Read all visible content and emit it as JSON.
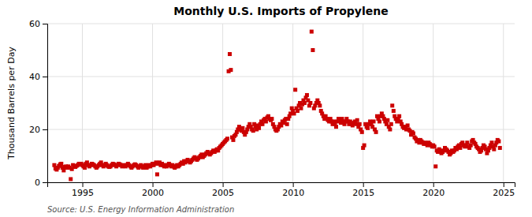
{
  "chart_data": {
    "type": "scatter",
    "title": "Monthly U.S. Imports of Propylene",
    "ylabel": "Thousand Barrels per Day",
    "annotation": "Source: U.S. Energy Information Administration",
    "color": "#cc0000",
    "marker": "square",
    "grid": true,
    "xlim": [
      1992.5,
      2025.8
    ],
    "xticks": [
      1995,
      2000,
      2005,
      2010,
      2015,
      2020,
      2025
    ],
    "ylim": [
      0,
      60
    ],
    "yticks": [
      0,
      20,
      40,
      60
    ],
    "x": [
      1993.0,
      1993.08,
      1993.17,
      1993.25,
      1993.33,
      1993.42,
      1993.5,
      1993.58,
      1993.67,
      1993.75,
      1993.83,
      1993.92,
      1994.0,
      1994.08,
      1994.17,
      1994.25,
      1994.33,
      1994.42,
      1994.5,
      1994.58,
      1994.67,
      1994.75,
      1994.83,
      1994.92,
      1995.0,
      1995.08,
      1995.17,
      1995.25,
      1995.33,
      1995.42,
      1995.5,
      1995.58,
      1995.67,
      1995.75,
      1995.83,
      1995.92,
      1996.0,
      1996.08,
      1996.17,
      1996.25,
      1996.33,
      1996.42,
      1996.5,
      1996.58,
      1996.67,
      1996.75,
      1996.83,
      1996.92,
      1997.0,
      1997.08,
      1997.17,
      1997.25,
      1997.33,
      1997.42,
      1997.5,
      1997.58,
      1997.67,
      1997.75,
      1997.83,
      1997.92,
      1998.0,
      1998.08,
      1998.17,
      1998.25,
      1998.33,
      1998.42,
      1998.5,
      1998.58,
      1998.67,
      1998.75,
      1998.83,
      1998.92,
      1999.0,
      1999.08,
      1999.17,
      1999.25,
      1999.33,
      1999.42,
      1999.5,
      1999.58,
      1999.67,
      1999.75,
      1999.83,
      1999.92,
      2000.0,
      2000.08,
      2000.17,
      2000.25,
      2000.33,
      2000.42,
      2000.5,
      2000.58,
      2000.67,
      2000.75,
      2000.83,
      2000.92,
      2001.0,
      2001.08,
      2001.17,
      2001.25,
      2001.33,
      2001.42,
      2001.5,
      2001.58,
      2001.67,
      2001.75,
      2001.83,
      2001.92,
      2002.0,
      2002.08,
      2002.17,
      2002.25,
      2002.33,
      2002.42,
      2002.5,
      2002.58,
      2002.67,
      2002.75,
      2002.83,
      2002.92,
      2003.0,
      2003.08,
      2003.17,
      2003.25,
      2003.33,
      2003.42,
      2003.5,
      2003.58,
      2003.67,
      2003.75,
      2003.83,
      2003.92,
      2004.0,
      2004.08,
      2004.17,
      2004.25,
      2004.33,
      2004.42,
      2004.5,
      2004.58,
      2004.67,
      2004.75,
      2004.83,
      2004.92,
      2005.0,
      2005.08,
      2005.17,
      2005.25,
      2005.33,
      2005.42,
      2005.5,
      2005.58,
      2005.67,
      2005.75,
      2005.83,
      2005.92,
      2006.0,
      2006.08,
      2006.17,
      2006.25,
      2006.33,
      2006.42,
      2006.5,
      2006.58,
      2006.67,
      2006.75,
      2006.83,
      2006.92,
      2007.0,
      2007.08,
      2007.17,
      2007.25,
      2007.33,
      2007.42,
      2007.5,
      2007.58,
      2007.67,
      2007.75,
      2007.83,
      2007.92,
      2008.0,
      2008.08,
      2008.17,
      2008.25,
      2008.33,
      2008.42,
      2008.5,
      2008.58,
      2008.67,
      2008.75,
      2008.83,
      2008.92,
      2009.0,
      2009.08,
      2009.17,
      2009.25,
      2009.33,
      2009.42,
      2009.5,
      2009.58,
      2009.67,
      2009.75,
      2009.83,
      2009.92,
      2010.0,
      2010.08,
      2010.17,
      2010.25,
      2010.33,
      2010.42,
      2010.5,
      2010.58,
      2010.67,
      2010.75,
      2010.83,
      2010.92,
      2011.0,
      2011.08,
      2011.17,
      2011.25,
      2011.33,
      2011.42,
      2011.5,
      2011.58,
      2011.67,
      2011.75,
      2011.83,
      2011.92,
      2012.0,
      2012.08,
      2012.17,
      2012.25,
      2012.33,
      2012.42,
      2012.5,
      2012.58,
      2012.67,
      2012.75,
      2012.83,
      2012.92,
      2013.0,
      2013.08,
      2013.17,
      2013.25,
      2013.33,
      2013.42,
      2013.5,
      2013.58,
      2013.67,
      2013.75,
      2013.83,
      2013.92,
      2014.0,
      2014.08,
      2014.17,
      2014.25,
      2014.33,
      2014.42,
      2014.5,
      2014.58,
      2014.67,
      2014.75,
      2014.83,
      2014.92,
      2015.0,
      2015.08,
      2015.17,
      2015.25,
      2015.33,
      2015.42,
      2015.5,
      2015.58,
      2015.67,
      2015.75,
      2015.83,
      2015.92,
      2016.0,
      2016.08,
      2016.17,
      2016.25,
      2016.33,
      2016.42,
      2016.5,
      2016.58,
      2016.67,
      2016.75,
      2016.83,
      2016.92,
      2017.0,
      2017.08,
      2017.17,
      2017.25,
      2017.33,
      2017.42,
      2017.5,
      2017.58,
      2017.67,
      2017.75,
      2017.83,
      2017.92,
      2018.0,
      2018.08,
      2018.17,
      2018.25,
      2018.33,
      2018.42,
      2018.5,
      2018.58,
      2018.67,
      2018.75,
      2018.83,
      2018.92,
      2019.0,
      2019.08,
      2019.17,
      2019.25,
      2019.33,
      2019.42,
      2019.5,
      2019.58,
      2019.67,
      2019.75,
      2019.83,
      2019.92,
      2020.0,
      2020.08,
      2020.17,
      2020.25,
      2020.33,
      2020.42,
      2020.5,
      2020.58,
      2020.67,
      2020.75,
      2020.83,
      2020.92,
      2021.0,
      2021.08,
      2021.17,
      2021.25,
      2021.33,
      2021.42,
      2021.5,
      2021.58,
      2021.67,
      2021.75,
      2021.83,
      2021.92,
      2022.0,
      2022.08,
      2022.17,
      2022.25,
      2022.33,
      2022.42,
      2022.5,
      2022.58,
      2022.67,
      2022.75,
      2022.83,
      2022.92,
      2023.0,
      2023.08,
      2023.17,
      2023.25,
      2023.33,
      2023.42,
      2023.5,
      2023.58,
      2023.67,
      2023.75,
      2023.83,
      2023.92,
      2024.0,
      2024.08,
      2024.17,
      2024.25,
      2024.33,
      2024.42,
      2024.5,
      2024.58,
      2024.67,
      2024.75
    ],
    "values": [
      6.5,
      5.2,
      4.8,
      5.5,
      6.2,
      6.8,
      7.0,
      5.5,
      4.5,
      5.8,
      6.0,
      5.5,
      6.0,
      5.5,
      1.2,
      5.0,
      6.5,
      6.0,
      5.8,
      6.2,
      6.5,
      7.0,
      6.8,
      7.0,
      6.5,
      6.0,
      5.5,
      7.0,
      7.5,
      6.5,
      6.0,
      6.5,
      7.0,
      6.8,
      6.5,
      6.0,
      5.5,
      6.0,
      6.5,
      7.0,
      7.5,
      6.5,
      6.0,
      6.5,
      7.0,
      6.5,
      6.0,
      5.8,
      6.0,
      6.5,
      7.0,
      6.8,
      6.5,
      6.0,
      6.5,
      7.0,
      6.8,
      6.5,
      6.0,
      6.2,
      6.5,
      6.0,
      6.5,
      7.0,
      6.5,
      6.0,
      5.5,
      6.0,
      6.5,
      6.8,
      6.5,
      6.0,
      5.5,
      6.0,
      6.5,
      6.0,
      5.5,
      6.0,
      6.5,
      5.5,
      6.0,
      6.5,
      6.0,
      6.5,
      7.0,
      6.5,
      7.0,
      7.5,
      3.0,
      7.0,
      7.5,
      6.5,
      7.0,
      6.5,
      6.0,
      6.5,
      6.0,
      6.5,
      7.0,
      6.5,
      6.0,
      6.5,
      6.0,
      5.5,
      6.0,
      6.5,
      6.0,
      6.5,
      7.0,
      7.5,
      7.0,
      8.0,
      7.5,
      8.0,
      8.5,
      8.0,
      7.5,
      8.0,
      8.5,
      9.0,
      9.5,
      9.0,
      8.5,
      9.0,
      9.5,
      10.0,
      10.5,
      9.5,
      10.0,
      10.5,
      11.0,
      11.5,
      11.0,
      10.5,
      11.0,
      11.5,
      12.0,
      11.5,
      12.0,
      12.5,
      12.0,
      13.0,
      13.5,
      14.0,
      14.5,
      15.0,
      15.5,
      16.0,
      16.5,
      42.0,
      48.5,
      42.5,
      17.0,
      16.0,
      17.5,
      18.0,
      19.0,
      20.0,
      21.0,
      20.0,
      19.5,
      20.5,
      19.0,
      18.0,
      19.0,
      20.0,
      21.0,
      22.0,
      21.0,
      20.0,
      19.5,
      22.0,
      21.0,
      20.0,
      21.5,
      20.5,
      22.0,
      23.0,
      22.0,
      23.5,
      24.0,
      23.0,
      24.5,
      25.0,
      24.0,
      23.5,
      24.0,
      22.0,
      21.0,
      20.0,
      19.5,
      20.0,
      21.0,
      22.0,
      21.5,
      23.0,
      22.5,
      23.5,
      24.0,
      22.0,
      24.0,
      25.0,
      26.0,
      28.0,
      27.0,
      26.0,
      35.0,
      28.0,
      27.0,
      29.0,
      30.0,
      28.0,
      29.5,
      31.0,
      30.0,
      32.0,
      33.0,
      31.0,
      29.0,
      30.0,
      57.0,
      50.0,
      28.0,
      29.0,
      30.0,
      31.0,
      30.0,
      29.0,
      27.0,
      26.0,
      25.0,
      24.0,
      25.0,
      24.0,
      23.5,
      23.0,
      24.0,
      23.0,
      22.0,
      23.0,
      22.0,
      21.0,
      23.0,
      24.0,
      23.5,
      22.5,
      24.0,
      23.0,
      22.0,
      23.0,
      24.0,
      23.0,
      22.0,
      23.0,
      22.0,
      21.5,
      22.5,
      23.0,
      22.0,
      23.5,
      21.0,
      22.0,
      20.0,
      19.0,
      13.0,
      14.0,
      22.0,
      21.0,
      20.5,
      22.0,
      23.0,
      22.0,
      21.0,
      23.0,
      20.0,
      19.0,
      25.0,
      24.0,
      23.0,
      25.0,
      26.0,
      25.0,
      24.0,
      23.0,
      22.0,
      23.5,
      21.0,
      20.0,
      22.0,
      29.0,
      27.0,
      25.0,
      24.0,
      23.0,
      24.0,
      25.0,
      23.0,
      22.0,
      21.0,
      20.5,
      21.0,
      20.0,
      21.5,
      20.0,
      19.5,
      18.0,
      19.0,
      18.5,
      17.0,
      16.5,
      15.5,
      16.0,
      15.0,
      16.0,
      15.5,
      15.0,
      14.5,
      15.0,
      14.5,
      14.0,
      15.0,
      14.5,
      14.0,
      13.5,
      14.0,
      13.5,
      6.0,
      12.0,
      11.5,
      12.5,
      12.0,
      11.0,
      11.5,
      12.0,
      13.0,
      12.5,
      12.0,
      11.5,
      10.5,
      11.0,
      12.0,
      11.5,
      12.0,
      13.0,
      12.5,
      13.5,
      14.0,
      13.0,
      14.5,
      15.0,
      14.0,
      13.5,
      14.0,
      15.0,
      13.5,
      13.0,
      14.0,
      15.5,
      16.0,
      15.0,
      14.5,
      13.5,
      13.0,
      12.5,
      11.5,
      12.0,
      13.0,
      14.0,
      13.5,
      12.5,
      11.0,
      12.0,
      13.0,
      14.0,
      15.0,
      13.5,
      12.5,
      14.0,
      15.0,
      16.0,
      15.5,
      13.0
    ]
  }
}
